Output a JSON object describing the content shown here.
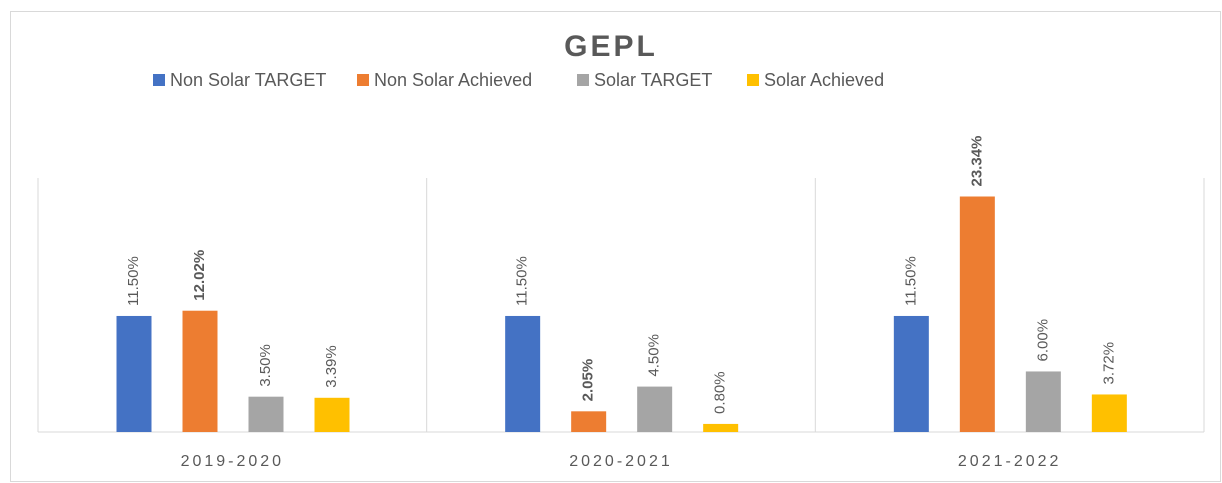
{
  "chart_data": {
    "type": "bar",
    "title": "GEPL",
    "categories": [
      "2019-2020",
      "2020-2021",
      "2021-2022"
    ],
    "series": [
      {
        "name": "Non Solar TARGET",
        "color": "#4472c4",
        "values": [
          11.5,
          11.5,
          11.5
        ],
        "value_labels": [
          "11.50%",
          "11.50%",
          "11.50%"
        ]
      },
      {
        "name": "Non Solar Achieved",
        "color": "#ed7d31",
        "values": [
          12.02,
          2.05,
          23.34
        ],
        "value_labels": [
          "12.02%",
          "2.05%",
          "23.34%"
        ],
        "bold_labels": true
      },
      {
        "name": "Solar TARGET",
        "color": "#a5a5a5",
        "values": [
          3.5,
          4.5,
          6.0
        ],
        "value_labels": [
          "3.50%",
          "4.50%",
          "6.00%"
        ]
      },
      {
        "name": "Solar Achieved",
        "color": "#ffc000",
        "values": [
          3.39,
          0.8,
          3.72
        ],
        "value_labels": [
          "3.39%",
          "0.80%",
          "3.72%"
        ]
      }
    ],
    "legend": "top"
  }
}
